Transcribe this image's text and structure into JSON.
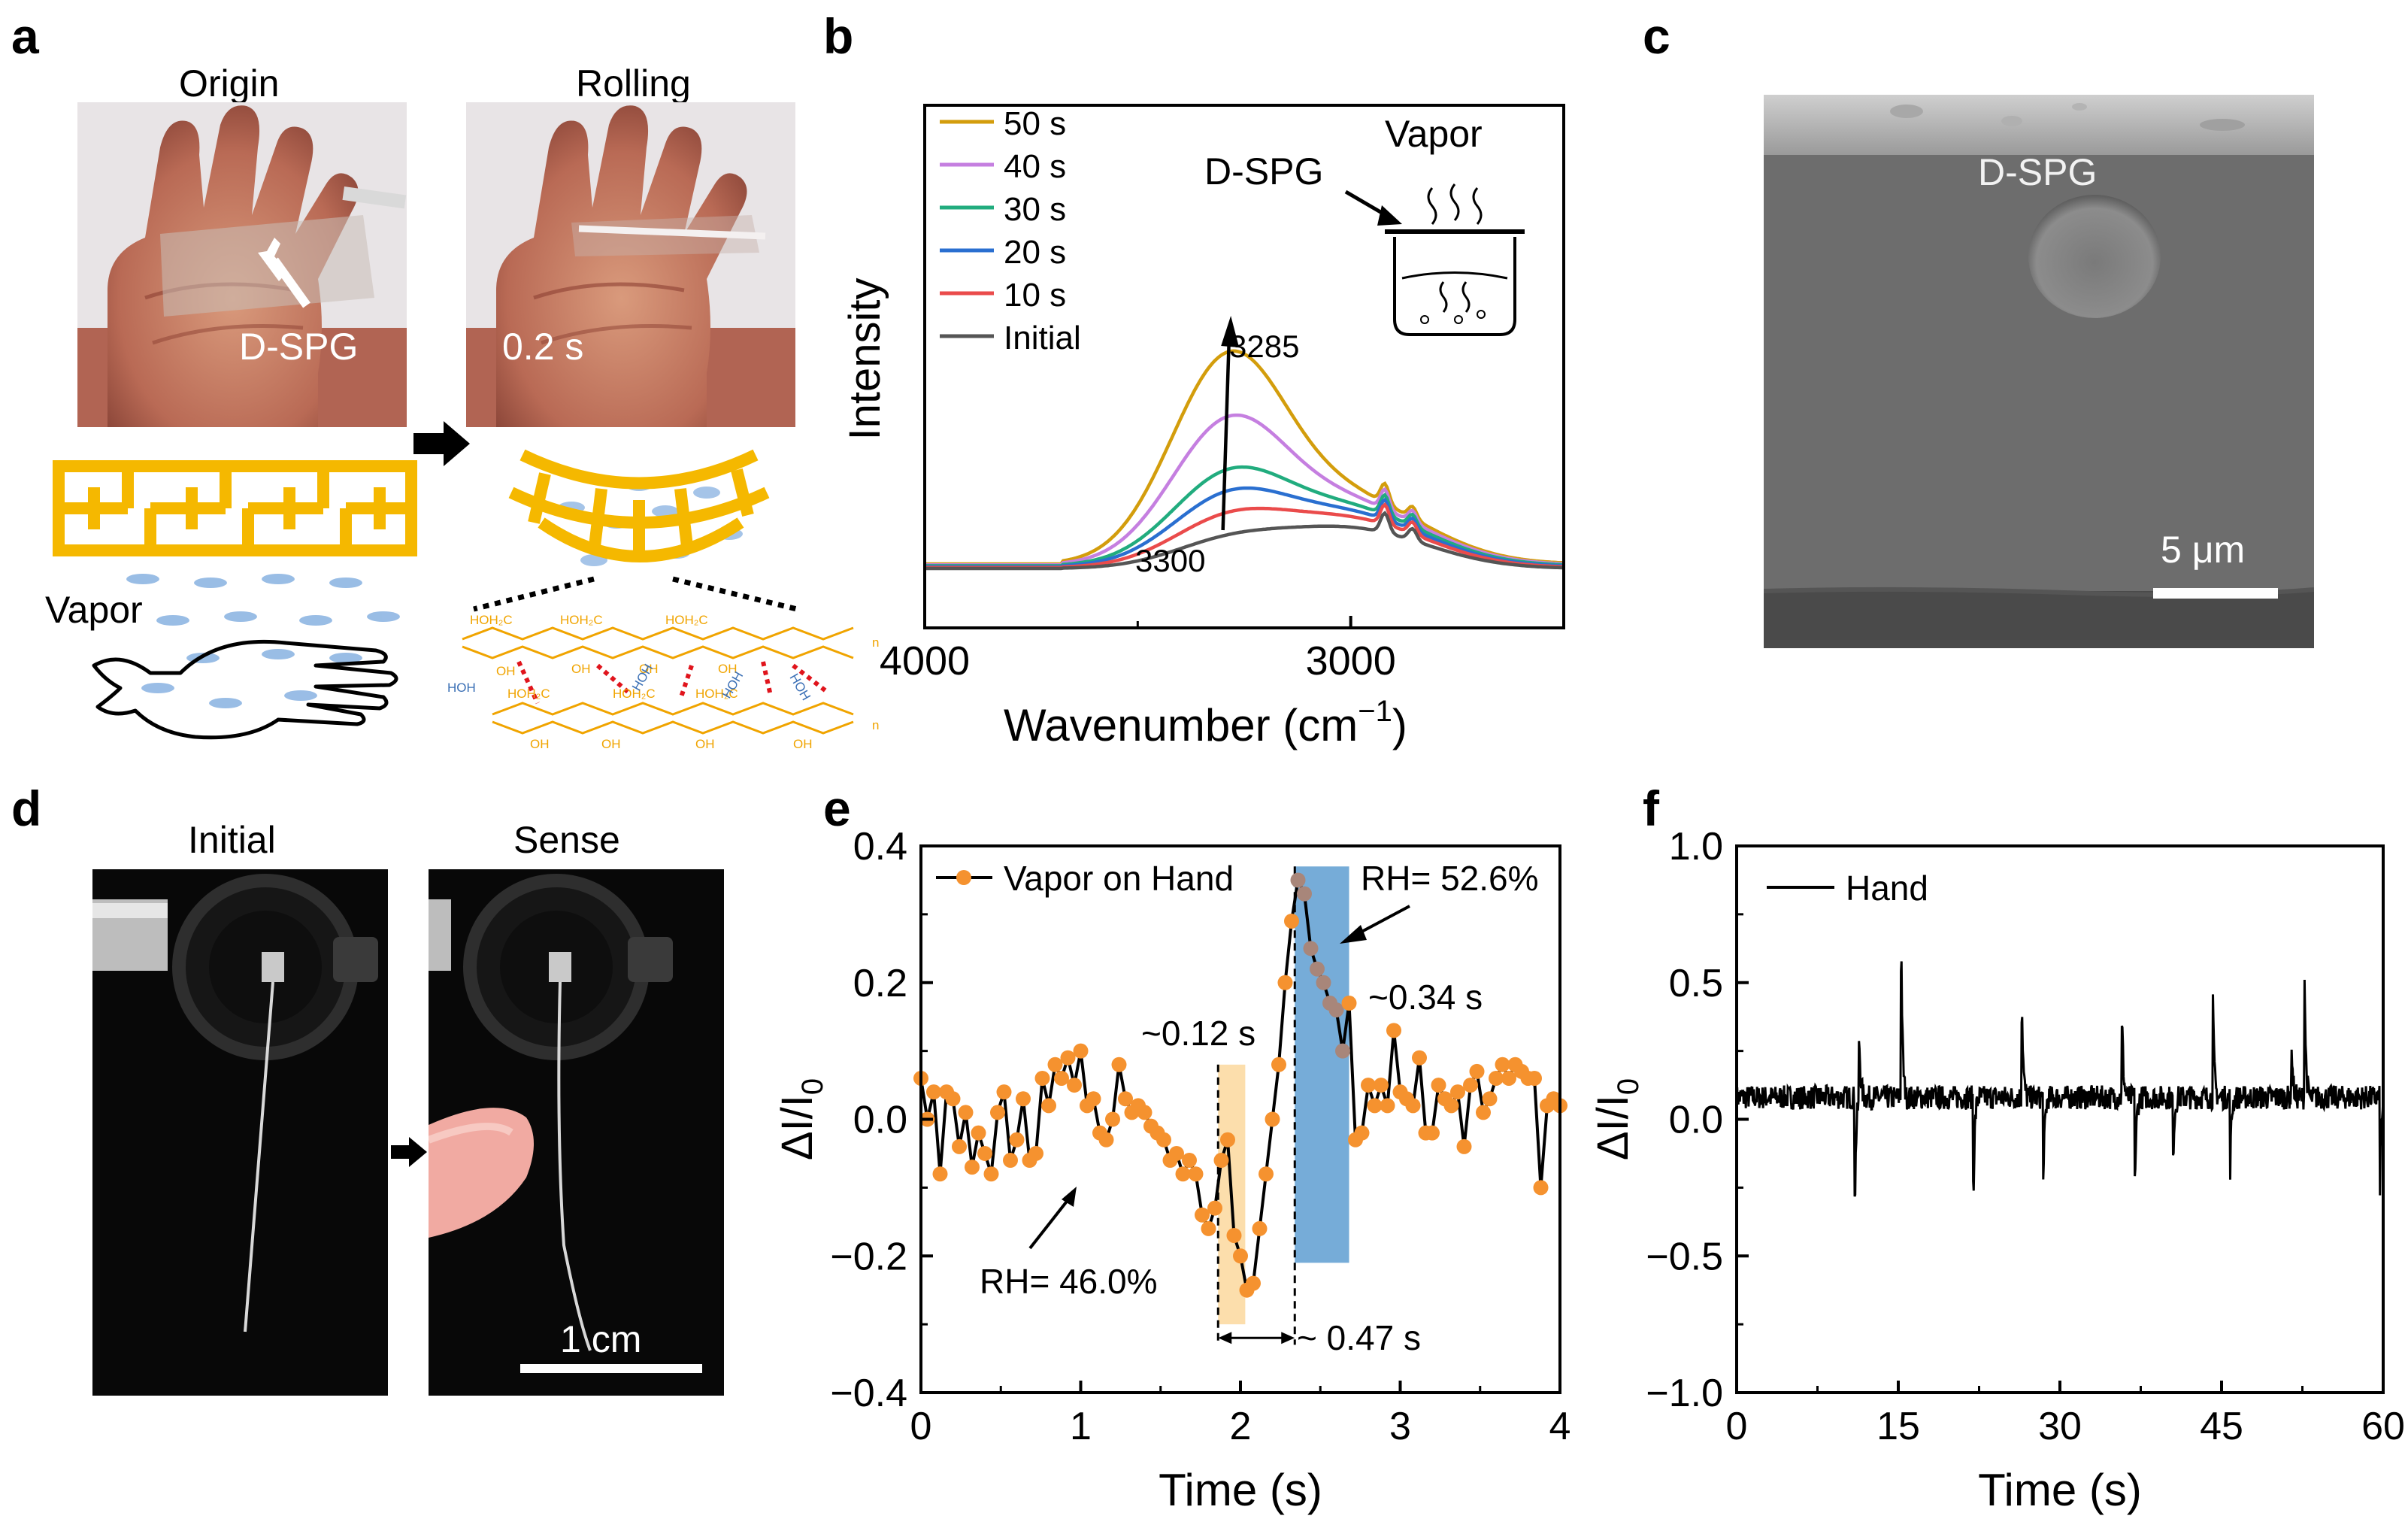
{
  "panel_a": {
    "letter": "a",
    "origin_title": "Origin",
    "rolling_title": "Rolling",
    "dspg_label": "D-SPG",
    "time_label": "0.2 s",
    "vapor_label": "Vapor",
    "chem_labels": [
      "HOH₂C",
      "HOH₂C",
      "HOH₂C",
      "HOH₂C",
      "HOH₂C",
      "HOH₂C",
      "OH",
      "OH",
      "OH",
      "OH",
      "OH",
      "OH",
      "OH",
      "OH",
      "HOH",
      "HOH",
      "HOH",
      "HOH",
      "n",
      "n"
    ],
    "colors": {
      "network": "#f5b800",
      "vapor": "#8fb6e3",
      "hbond": "#e0141c",
      "water": "#3a6fb5"
    }
  },
  "chart_data": [
    {
      "panel": "b",
      "type": "line",
      "title": "",
      "xlabel": "Wavenumber (cm",
      "xlabel_sup": "−1",
      "xlabel_end": ")",
      "ylabel": "Intensity",
      "xlim": [
        4000,
        2500
      ],
      "x_ticks": [
        4000,
        3000
      ],
      "legend": [
        "50 s",
        "40 s",
        "30 s",
        "20 s",
        "10 s",
        "Initial"
      ],
      "series": [
        {
          "name": "50 s",
          "color": "#d39d0c",
          "peak": 0.5,
          "shoulder": 0.16
        },
        {
          "name": "40 s",
          "color": "#c57fe0",
          "peak": 0.34,
          "shoulder": 0.15
        },
        {
          "name": "30 s",
          "color": "#21ac7e",
          "peak": 0.21,
          "shoulder": 0.14
        },
        {
          "name": "20 s",
          "color": "#2a6fd0",
          "peak": 0.16,
          "shoulder": 0.13
        },
        {
          "name": "10 s",
          "color": "#ea4b4b",
          "peak": 0.11,
          "shoulder": 0.12
        },
        {
          "name": "Initial",
          "color": "#555555",
          "peak": 0.06,
          "shoulder": 0.1
        }
      ],
      "annotations": [
        "3285",
        "3300"
      ],
      "inset_labels": {
        "dspg": "D-SPG",
        "vapor": "Vapor"
      }
    },
    {
      "panel": "e",
      "type": "line",
      "xlabel": "Time (s)",
      "ylabel": "ΔI/I",
      "ylabel_sub": "0",
      "xlim": [
        0,
        4
      ],
      "ylim": [
        -0.4,
        0.4
      ],
      "x_ticks": [
        "0",
        "1",
        "2",
        "3",
        "4"
      ],
      "y_ticks": [
        "0.4",
        "0.2",
        "0.0",
        "−0.2",
        "−0.4"
      ],
      "legend": [
        "Vapor on Hand"
      ],
      "series": [
        {
          "name": "Vapor on Hand",
          "x": [
            0.0,
            0.04,
            0.08,
            0.12,
            0.16,
            0.2,
            0.24,
            0.28,
            0.32,
            0.36,
            0.4,
            0.44,
            0.48,
            0.52,
            0.56,
            0.6,
            0.64,
            0.68,
            0.72,
            0.76,
            0.8,
            0.84,
            0.88,
            0.92,
            0.96,
            1.0,
            1.04,
            1.08,
            1.12,
            1.16,
            1.2,
            1.24,
            1.28,
            1.32,
            1.36,
            1.4,
            1.44,
            1.48,
            1.52,
            1.56,
            1.6,
            1.64,
            1.68,
            1.72,
            1.76,
            1.8,
            1.84,
            1.88,
            1.92,
            1.96,
            2.0,
            2.04,
            2.08,
            2.12,
            2.16,
            2.2,
            2.24,
            2.28,
            2.32,
            2.36,
            2.4,
            2.44,
            2.48,
            2.52,
            2.56,
            2.6,
            2.64,
            2.68,
            2.72,
            2.76,
            2.8,
            2.84,
            2.88,
            2.92,
            2.96,
            3.0,
            3.04,
            3.08,
            3.12,
            3.16,
            3.2,
            3.24,
            3.28,
            3.32,
            3.36,
            3.4,
            3.44,
            3.48,
            3.52,
            3.56,
            3.6,
            3.64,
            3.68,
            3.72,
            3.76,
            3.8,
            3.84,
            3.88,
            3.92,
            3.96,
            4.0
          ],
          "y": [
            0.06,
            0.0,
            0.04,
            -0.08,
            0.04,
            0.03,
            -0.04,
            0.01,
            -0.07,
            -0.02,
            -0.05,
            -0.08,
            0.01,
            0.04,
            -0.06,
            -0.03,
            0.03,
            -0.06,
            -0.05,
            0.06,
            0.02,
            0.08,
            0.06,
            0.09,
            0.05,
            0.1,
            0.02,
            0.03,
            -0.02,
            -0.03,
            0.0,
            0.08,
            0.03,
            0.01,
            0.02,
            0.01,
            -0.01,
            -0.02,
            -0.03,
            -0.06,
            -0.05,
            -0.08,
            -0.06,
            -0.08,
            -0.14,
            -0.16,
            -0.13,
            -0.06,
            -0.03,
            -0.17,
            -0.2,
            -0.25,
            -0.24,
            -0.16,
            -0.08,
            0.0,
            0.08,
            0.2,
            0.29,
            0.35,
            0.33,
            0.25,
            0.22,
            0.2,
            0.17,
            0.16,
            0.1,
            0.17,
            -0.03,
            -0.02,
            0.05,
            0.02,
            0.05,
            0.02,
            0.13,
            0.04,
            0.03,
            0.02,
            0.09,
            -0.02,
            -0.02,
            0.05,
            0.03,
            0.02,
            0.04,
            -0.04,
            0.05,
            0.07,
            0.01,
            0.03,
            0.06,
            0.08,
            0.06,
            0.08,
            0.07,
            0.06,
            0.06,
            -0.1,
            0.02,
            0.03,
            0.02
          ]
        }
      ],
      "annotations": [
        "RH= 52.6%",
        "~0.34 s",
        "~0.12 s",
        "RH= 46.0%",
        "~ 0.47 s"
      ],
      "colors": {
        "marker": "#f5922f",
        "rise_band": "#fbd89d",
        "fall_band": "#6fa8d6"
      }
    },
    {
      "panel": "f",
      "type": "line",
      "xlabel": "Time (s)",
      "ylabel": "ΔI/I",
      "ylabel_sub": "0",
      "xlim": [
        0,
        60
      ],
      "ylim": [
        -1.0,
        1.0
      ],
      "x_ticks": [
        "0",
        "15",
        "30",
        "45",
        "60"
      ],
      "y_ticks": [
        "1.0",
        "0.5",
        "0.0",
        "−0.5",
        "−1.0"
      ],
      "legend": [
        "Hand"
      ],
      "spikes": [
        {
          "t": 11.0,
          "v": -0.25
        },
        {
          "t": 11.4,
          "v": 0.28
        },
        {
          "t": 15.3,
          "v": 0.57
        },
        {
          "t": 22.0,
          "v": -0.22
        },
        {
          "t": 26.5,
          "v": 0.38
        },
        {
          "t": 28.5,
          "v": -0.18
        },
        {
          "t": 35.8,
          "v": 0.32
        },
        {
          "t": 37.0,
          "v": -0.18
        },
        {
          "t": 40.5,
          "v": -0.17
        },
        {
          "t": 44.2,
          "v": 0.44
        },
        {
          "t": 45.8,
          "v": -0.18
        },
        {
          "t": 51.5,
          "v": 0.29
        },
        {
          "t": 52.7,
          "v": 0.55
        },
        {
          "t": 59.7,
          "v": -0.24
        }
      ],
      "baseline": 0.08,
      "noise": 0.04
    }
  ],
  "panel_c": {
    "letter": "c",
    "dspg_label": "D-SPG",
    "scale_label": "5 μm"
  },
  "panel_d": {
    "letter": "d",
    "initial_title": "Initial",
    "sense_title": "Sense",
    "scale_label": "1 cm"
  },
  "letters": {
    "b": "b",
    "e": "e",
    "f": "f"
  }
}
